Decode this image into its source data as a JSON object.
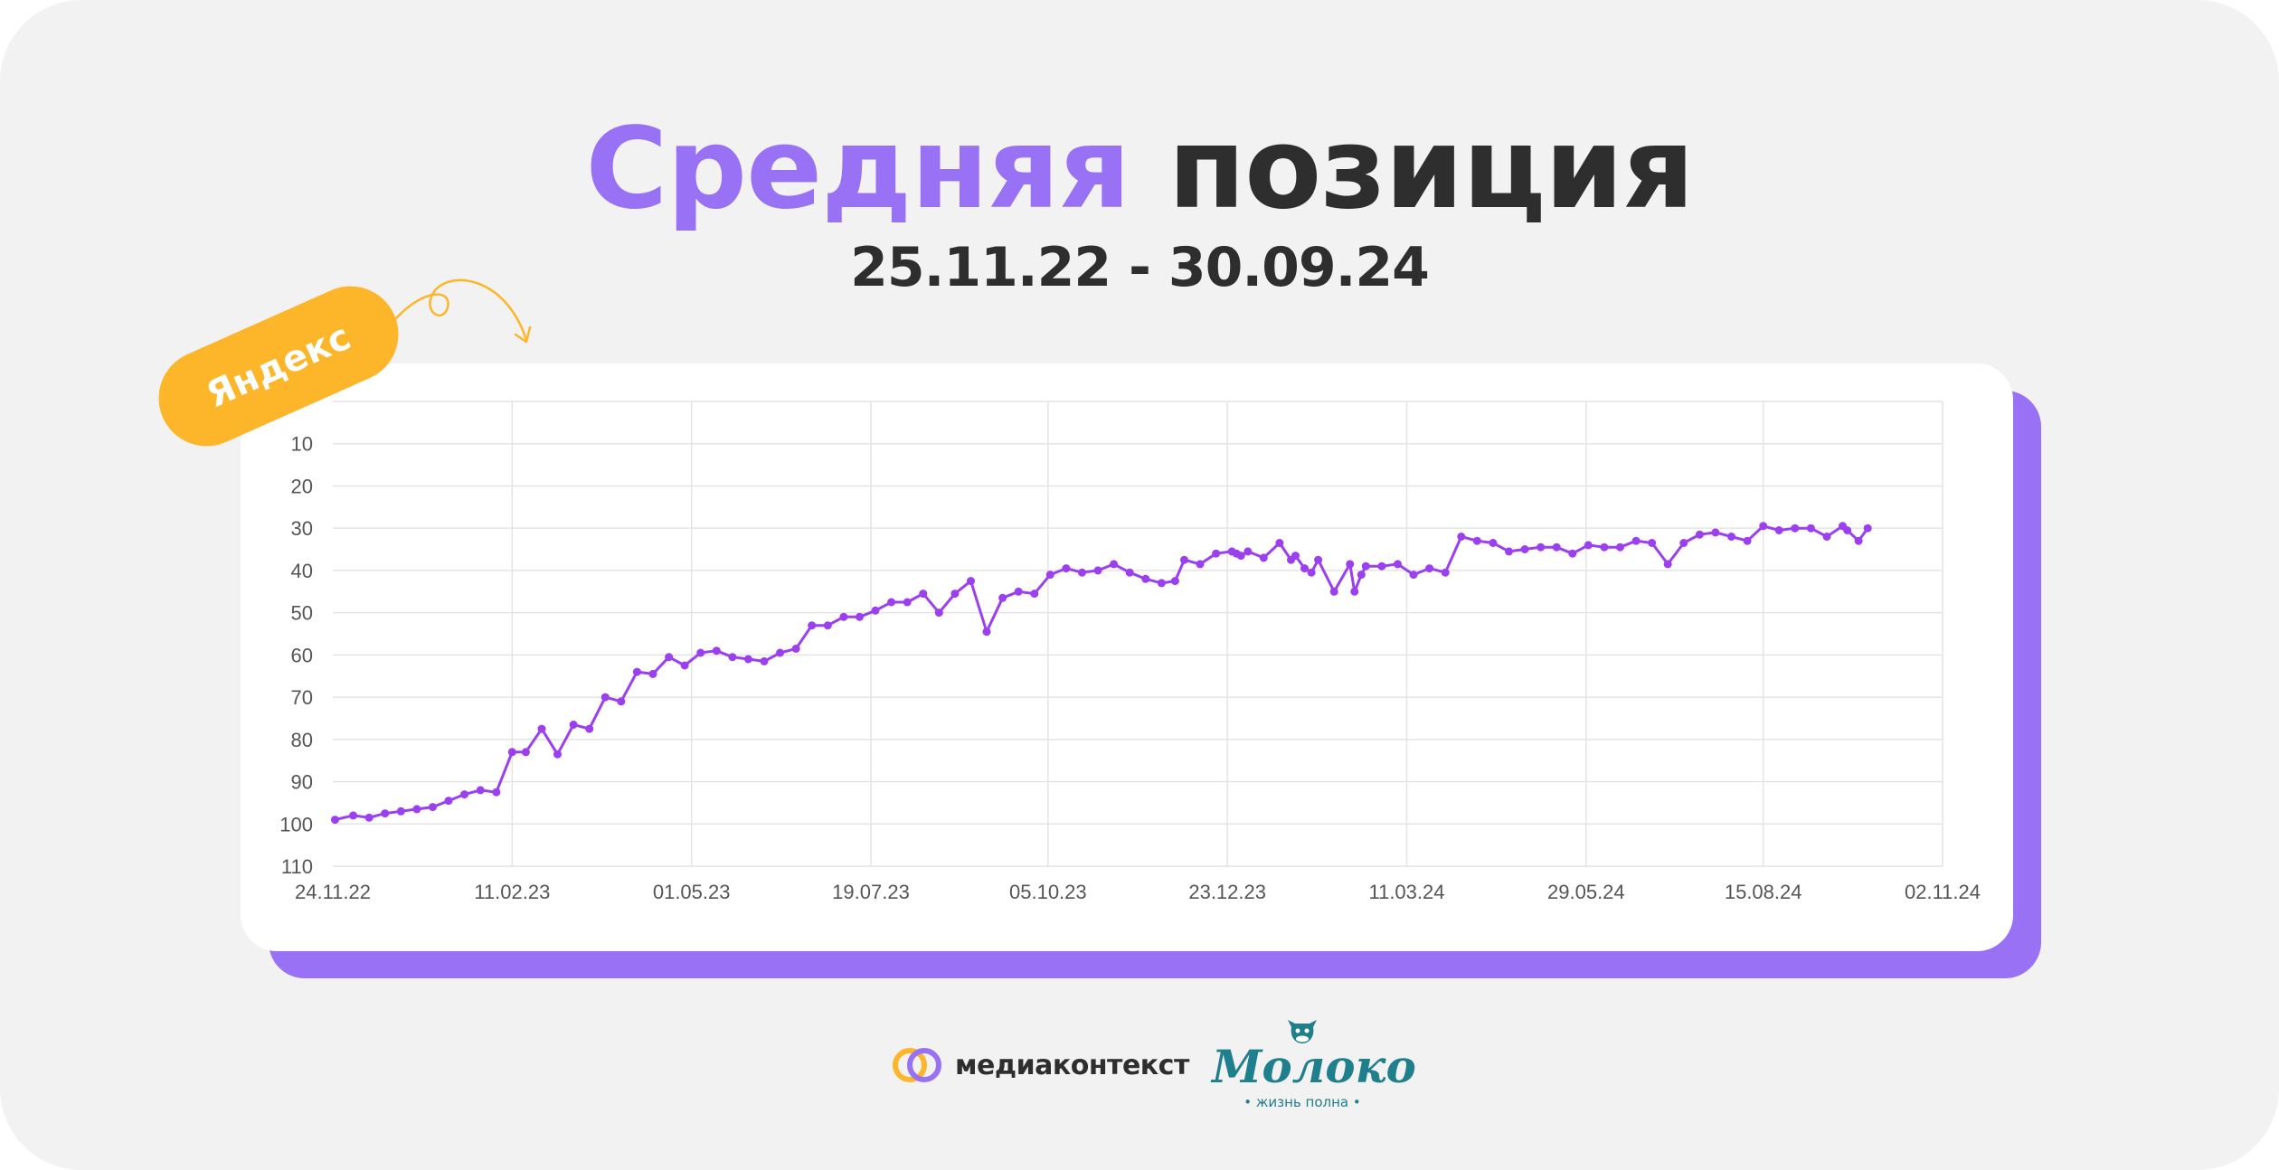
{
  "header": {
    "title_accent": "Средняя",
    "title_rest": "позиция",
    "date_range": "25.11.22 - 30.09.24"
  },
  "badge": {
    "label": "Яндекс"
  },
  "chart_data": {
    "type": "line",
    "title": "Средняя позиция",
    "subtitle": "25.11.22 - 30.09.24",
    "xlabel": "",
    "ylabel": "",
    "y_reversed": true,
    "ylim": [
      110,
      0
    ],
    "yticks": [
      10,
      20,
      30,
      40,
      50,
      60,
      70,
      80,
      90,
      100,
      110
    ],
    "xlim": [
      "2022-11-24",
      "2024-11-02"
    ],
    "xticks": [
      "24.11.22",
      "11.02.23",
      "01.05.23",
      "19.07.23",
      "05.10.23",
      "23.12.23",
      "11.03.24",
      "29.05.24",
      "15.08.24",
      "02.11.24"
    ],
    "xtick_dates": [
      "2022-11-24",
      "2023-02-11",
      "2023-05-01",
      "2023-07-19",
      "2023-10-05",
      "2023-12-23",
      "2024-03-11",
      "2024-05-29",
      "2024-08-15",
      "2024-11-02"
    ],
    "grid": true,
    "legend": "none",
    "line_color": "#9b3fef",
    "series": [
      {
        "x": [
          "2022-11-25",
          "2022-12-03",
          "2022-12-10",
          "2022-12-17",
          "2022-12-24",
          "2022-12-31",
          "2023-01-07",
          "2023-01-14",
          "2023-01-21",
          "2023-01-28",
          "2023-02-04",
          "2023-02-11",
          "2023-02-17",
          "2023-02-24",
          "2023-03-03",
          "2023-03-10",
          "2023-03-17",
          "2023-03-24",
          "2023-03-31",
          "2023-04-07",
          "2023-04-14",
          "2023-04-21",
          "2023-04-28",
          "2023-05-05",
          "2023-05-12",
          "2023-05-19",
          "2023-05-26",
          "2023-06-02",
          "2023-06-09",
          "2023-06-16",
          "2023-06-23",
          "2023-06-30",
          "2023-07-07",
          "2023-07-14",
          "2023-07-21",
          "2023-07-28",
          "2023-08-04",
          "2023-08-11",
          "2023-08-18",
          "2023-08-25",
          "2023-09-01",
          "2023-09-08",
          "2023-09-15",
          "2023-09-22",
          "2023-09-29",
          "2023-10-06",
          "2023-10-13",
          "2023-10-20",
          "2023-10-27",
          "2023-11-03",
          "2023-11-10",
          "2023-11-17",
          "2023-11-24",
          "2023-11-30",
          "2023-12-04",
          "2023-12-11",
          "2023-12-18",
          "2023-12-25",
          "2023-12-27",
          "2023-12-29",
          "2024-01-01",
          "2024-01-08",
          "2024-01-15",
          "2024-01-20",
          "2024-01-22",
          "2024-01-26",
          "2024-01-29",
          "2024-02-01",
          "2024-02-08",
          "2024-02-15",
          "2024-02-17",
          "2024-02-20",
          "2024-02-22",
          "2024-02-29",
          "2024-03-07",
          "2024-03-14",
          "2024-03-21",
          "2024-03-28",
          "2024-04-04",
          "2024-04-11",
          "2024-04-18",
          "2024-04-25",
          "2024-05-02",
          "2024-05-09",
          "2024-05-16",
          "2024-05-23",
          "2024-05-30",
          "2024-06-06",
          "2024-06-13",
          "2024-06-20",
          "2024-06-27",
          "2024-07-04",
          "2024-07-11",
          "2024-07-18",
          "2024-07-25",
          "2024-08-01",
          "2024-08-08",
          "2024-08-15",
          "2024-08-22",
          "2024-08-29",
          "2024-09-05",
          "2024-09-12",
          "2024-09-19",
          "2024-09-21",
          "2024-09-26",
          "2024-09-30"
        ],
        "y": [
          99,
          98,
          98.5,
          97.5,
          97,
          96.5,
          96,
          94.5,
          93,
          92,
          92.5,
          83,
          83,
          77.5,
          83.5,
          76.5,
          77.5,
          70,
          71,
          64,
          64.5,
          60.5,
          62.5,
          59.5,
          59,
          60.5,
          61,
          61.5,
          59.5,
          58.5,
          53,
          53,
          51,
          51,
          49.5,
          47.5,
          47.5,
          45.5,
          50,
          45.5,
          42.5,
          54.5,
          46.5,
          45,
          45.5,
          41,
          39.5,
          40.5,
          40,
          38.5,
          40.5,
          42,
          43,
          42.5,
          37.5,
          38.5,
          36,
          35.5,
          36,
          36.5,
          35.5,
          37,
          33.5,
          37.5,
          36.5,
          39.5,
          40.5,
          37.5,
          45,
          38.5,
          45,
          41,
          39,
          39,
          38.5,
          41,
          39.5,
          40.5,
          32,
          33,
          33.5,
          35.5,
          35,
          34.5,
          34.5,
          36,
          34,
          34.5,
          34.5,
          33,
          33.5,
          38.5,
          33.5,
          31.5,
          31,
          32,
          33,
          29.5,
          30.5,
          30,
          30,
          32,
          29.5,
          30.5,
          33,
          30
        ]
      }
    ]
  },
  "footer": {
    "brand1": {
      "name": "медиаконтекст",
      "icon": "overlapping-rings-logo"
    },
    "brand2": {
      "name": "Молоко",
      "tagline": "• жизнь полна •",
      "icon": "cow-head-logo"
    }
  },
  "colors": {
    "accent": "#9871f5",
    "line": "#9b3fef",
    "badge": "#fdb52a",
    "text": "#2e2e2e",
    "background": "#f2f2f2",
    "brand2": "#1f7f8c"
  }
}
